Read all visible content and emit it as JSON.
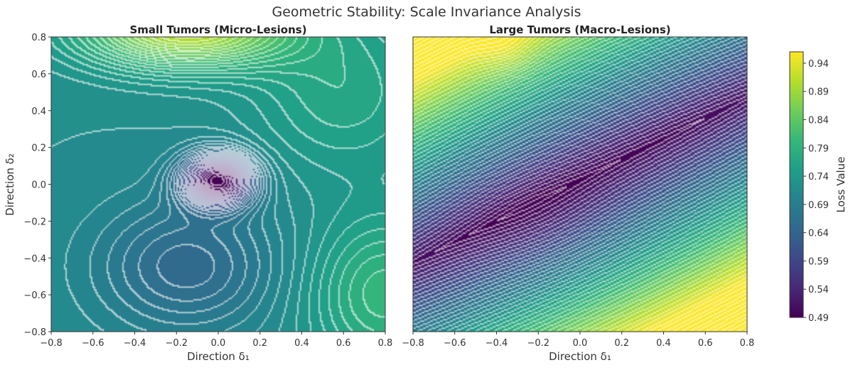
{
  "figure": {
    "title": "Geometric Stability: Scale Invariance Analysis"
  },
  "colors": {
    "viridis": [
      "#440154",
      "#482878",
      "#3e4989",
      "#31688e",
      "#26828e",
      "#1f9e89",
      "#35b779",
      "#6ece58",
      "#b5de2b",
      "#fde725"
    ],
    "contour_line": "#ffffff",
    "axis": "#333333"
  },
  "chart_data": [
    {
      "type": "heatmap",
      "subtype": "filled-contour",
      "title": "Small Tumors (Micro-Lesions)",
      "xlabel": "Direction δ₁",
      "ylabel": "Direction δ₂",
      "xlim": [
        -0.8,
        0.8
      ],
      "ylim": [
        -0.8,
        0.8
      ],
      "x_ticks": [
        "−0.8",
        "−0.6",
        "−0.4",
        "−0.2",
        "0.0",
        "0.2",
        "0.4",
        "0.6",
        "0.8"
      ],
      "y_ticks": [
        "−0.8",
        "−0.6",
        "−0.4",
        "−0.2",
        "0.0",
        "0.2",
        "0.4",
        "0.6",
        "0.8"
      ],
      "surface": {
        "base": 0.72,
        "terms": [
          {
            "kind": "gaussian",
            "amp": -0.24,
            "cx": 0.0,
            "cy": 0.02,
            "sx": 0.12,
            "sy": 0.1
          },
          {
            "kind": "gaussian",
            "amp": 0.2,
            "cx": -0.15,
            "cy": 0.85,
            "sx": 0.35,
            "sy": 0.15
          },
          {
            "kind": "gaussian",
            "amp": -0.07,
            "cx": -0.15,
            "cy": -0.45,
            "sx": 0.3,
            "sy": 0.25
          },
          {
            "kind": "gaussian",
            "amp": 0.08,
            "cx": 0.8,
            "cy": -0.6,
            "sx": 0.25,
            "sy": 0.3
          },
          {
            "kind": "gaussian",
            "amp": 0.05,
            "cx": 0.6,
            "cy": 0.5,
            "sx": 0.3,
            "sy": 0.3
          }
        ]
      }
    },
    {
      "type": "heatmap",
      "subtype": "filled-contour",
      "title": "Large Tumors (Macro-Lesions)",
      "xlabel": "Direction δ₁",
      "ylabel": "",
      "xlim": [
        -0.8,
        0.8
      ],
      "ylim": [
        -0.8,
        0.8
      ],
      "x_ticks": [
        "−0.8",
        "−0.6",
        "−0.4",
        "−0.2",
        "0.0",
        "0.2",
        "0.4",
        "0.6",
        "0.8"
      ],
      "y_ticks": [],
      "surface": {
        "base": 0.49,
        "terms": [
          {
            "kind": "valley",
            "slope": 0.56,
            "intercept": 0.02,
            "k": 0.45,
            "min_quad": 0.02
          },
          {
            "kind": "gaussian",
            "amp": -0.02,
            "cx": -0.2,
            "cy": -0.2,
            "sx": 0.25,
            "sy": 0.2
          },
          {
            "kind": "gaussian",
            "amp": 0.03,
            "cx": -0.35,
            "cy": 0.75,
            "sx": 0.1,
            "sy": 0.1
          }
        ]
      }
    }
  ],
  "colorbar": {
    "label": "Loss Value",
    "min": 0.49,
    "max": 0.96,
    "ticks": [
      {
        "value": 0.49,
        "label": "0.49"
      },
      {
        "value": 0.54,
        "label": "0.54"
      },
      {
        "value": 0.59,
        "label": "0.59"
      },
      {
        "value": 0.64,
        "label": "0.64"
      },
      {
        "value": 0.69,
        "label": "0.69"
      },
      {
        "value": 0.74,
        "label": "0.74"
      },
      {
        "value": 0.79,
        "label": "0.79"
      },
      {
        "value": 0.84,
        "label": "0.84"
      },
      {
        "value": 0.89,
        "label": "0.89"
      },
      {
        "value": 0.94,
        "label": "0.94"
      }
    ]
  }
}
